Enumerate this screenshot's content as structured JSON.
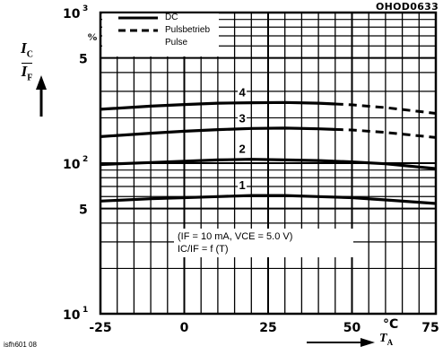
{
  "figure_code": "OHOD0633",
  "doc_id": "isfh601 08",
  "y_axis_label": {
    "num": "I",
    "num_sub": "C",
    "den": "I",
    "den_sub": "F"
  },
  "x_axis_label": {
    "main": "T",
    "sub": "A"
  },
  "y_unit": "%",
  "x_unit": "°C",
  "note": {
    "line1": "(IF = 10 mA, VCE = 5.0 V)",
    "line2": "IC/IF = f (T)"
  },
  "chart_data": {
    "type": "line",
    "y_scale": "log",
    "xlim": [
      -25,
      75
    ],
    "ylim": [
      10,
      1000
    ],
    "x_ticks": [
      "-25",
      "0",
      "25",
      "50",
      "75"
    ],
    "y_ticks": [
      {
        "value": 10,
        "mantissa": "10",
        "exp": "1"
      },
      {
        "value": 50,
        "label": "5"
      },
      {
        "value": 100,
        "mantissa": "10",
        "exp": "2"
      },
      {
        "value": 500,
        "label": "5"
      },
      {
        "value": 1000,
        "mantissa": "10",
        "exp": "3"
      }
    ],
    "legend": [
      {
        "style": "solid",
        "label": "DC"
      },
      {
        "style": "dashed",
        "label": "Pulsbetrieb"
      },
      {
        "style": "none",
        "label": "Pulse"
      }
    ],
    "series": [
      {
        "name": "1",
        "x": [
          -25,
          -10,
          0,
          10,
          20,
          30,
          40,
          50,
          60,
          75
        ],
        "y": [
          56,
          58,
          59,
          60,
          61,
          61,
          60,
          59,
          57,
          54
        ],
        "dash_from": null
      },
      {
        "name": "2",
        "x": [
          -25,
          -10,
          0,
          10,
          20,
          30,
          40,
          50,
          60,
          75
        ],
        "y": [
          98,
          101,
          103,
          105,
          106,
          105,
          104,
          102,
          99,
          92
        ],
        "dash_from": null
      },
      {
        "name": "3",
        "x": [
          -25,
          -10,
          0,
          10,
          20,
          30,
          40,
          50,
          60,
          75
        ],
        "y": [
          150,
          158,
          163,
          167,
          170,
          171,
          169,
          166,
          160,
          148
        ],
        "dash_from": 45
      },
      {
        "name": "4",
        "x": [
          -25,
          -10,
          0,
          10,
          20,
          30,
          40,
          50,
          60,
          75
        ],
        "y": [
          228,
          239,
          245,
          250,
          252,
          253,
          250,
          244,
          234,
          214
        ],
        "dash_from": 45
      }
    ]
  }
}
